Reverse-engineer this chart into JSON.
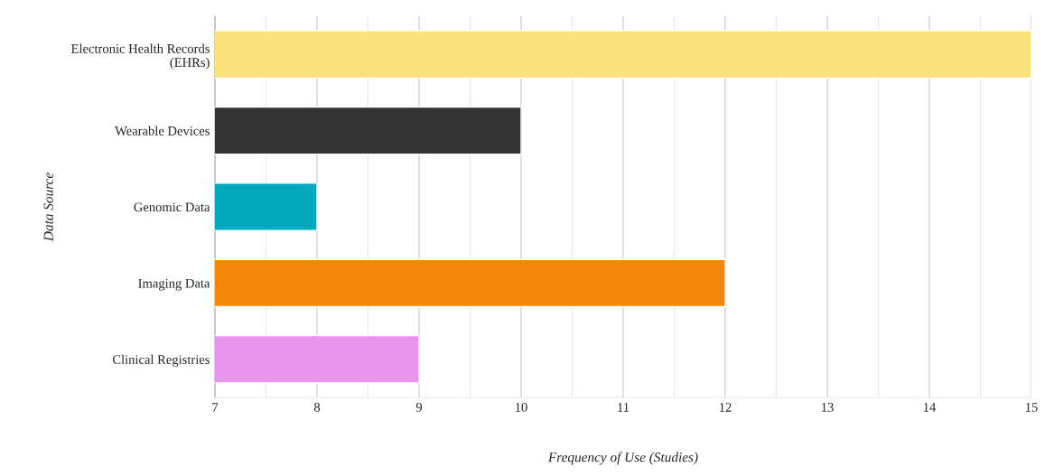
{
  "chart_data": {
    "type": "bar",
    "orientation": "horizontal",
    "categories": [
      "Electronic Health Records\n(EHRs)",
      "Wearable Devices",
      "Genomic Data",
      "Imaging Data",
      "Clinical Registries"
    ],
    "values": [
      15,
      10,
      8,
      12,
      9
    ],
    "colors": [
      "#f9e27a",
      "#333333",
      "#00a9bb",
      "#f2870a",
      "#e895ee"
    ],
    "xlabel": "Frequency of Use (Studies)",
    "ylabel": "Data Source",
    "xlim": [
      7,
      15
    ],
    "xticks": [
      7,
      {
        "value": 7.5,
        "label": null
      },
      8,
      {
        "value": 8.5,
        "label": null
      },
      9,
      {
        "value": 9.5,
        "label": null
      },
      10,
      {
        "value": 10.5,
        "label": null
      },
      11,
      {
        "value": 11.5,
        "label": null
      },
      12,
      {
        "value": 12.5,
        "label": null
      },
      13,
      {
        "value": 13.5,
        "label": null
      },
      14,
      {
        "value": 14.5,
        "label": null
      },
      15
    ],
    "grid": "x"
  }
}
